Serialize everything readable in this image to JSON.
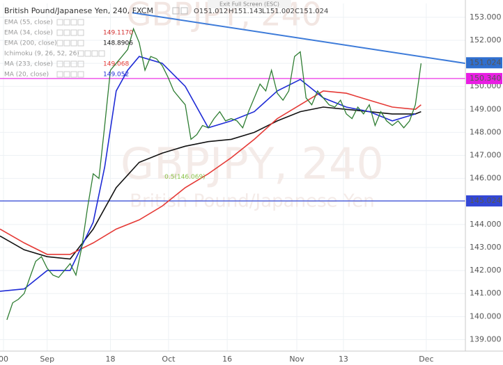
{
  "top_bar": "Exit Full Screen (ESC)",
  "chart_data": {
    "type": "line",
    "title": "British Pound/Japanese Yen, 240, FXCM",
    "ohlc": [
      "O151.012",
      "H151.143",
      "L151.002",
      "C151.024"
    ],
    "watermark": [
      "GBPJPY, 240",
      "British Pound/Japanese Yen"
    ],
    "xlim": [
      -8.2,
      72.7
    ],
    "ylim": [
      138.5,
      153.6
    ],
    "xticks": [
      {
        "value": -7.6,
        "label": "00"
      },
      {
        "value": 0,
        "label": "Sep"
      },
      {
        "value": 11,
        "label": "18"
      },
      {
        "value": 21.1,
        "label": "Oct"
      },
      {
        "value": 31.3,
        "label": "16"
      },
      {
        "value": 43.4,
        "label": "Nov"
      },
      {
        "value": 51.5,
        "label": "13"
      },
      {
        "value": 65.9,
        "label": "Dec"
      }
    ],
    "yticks": [
      {
        "value": 139,
        "label": "139.000"
      },
      {
        "value": 140,
        "label": "140.000"
      },
      {
        "value": 141,
        "label": "141.000"
      },
      {
        "value": 142,
        "label": "142.000"
      },
      {
        "value": 143,
        "label": "143.000"
      },
      {
        "value": 144,
        "label": "144.000"
      },
      {
        "value": 145,
        "label": "145.000"
      },
      {
        "value": 146,
        "label": "146.000"
      },
      {
        "value": 147,
        "label": "147.000"
      },
      {
        "value": 148,
        "label": "148.000"
      },
      {
        "value": 149,
        "label": "149.000"
      },
      {
        "value": 150,
        "label": "150.000"
      },
      {
        "value": 151,
        "label": "151.000"
      },
      {
        "value": 152,
        "label": "152.000"
      },
      {
        "value": 153,
        "label": "153.000"
      }
    ],
    "grid": true,
    "price": {
      "color": "#2e7d32",
      "x": [
        -7,
        -6,
        -5,
        -4,
        -3,
        -2,
        -1,
        0,
        1,
        2,
        3,
        4,
        5,
        6,
        7,
        8,
        9,
        10,
        11,
        12,
        13,
        14,
        15,
        16,
        17,
        18,
        19,
        20,
        21,
        22,
        23,
        24,
        25,
        26,
        27,
        28,
        29,
        30,
        31,
        32,
        33,
        34,
        35,
        36,
        37,
        38,
        39,
        40,
        41,
        42,
        43,
        44,
        45,
        46,
        47,
        48,
        49,
        50,
        51,
        52,
        53,
        54,
        55,
        56,
        57,
        58,
        59,
        60,
        61,
        62,
        63,
        64,
        65
      ],
      "values": [
        139.86,
        140.6,
        140.75,
        141.0,
        141.7,
        142.4,
        142.6,
        142.1,
        141.8,
        141.7,
        142.0,
        142.3,
        141.8,
        143.0,
        144.7,
        146.2,
        146.0,
        148.3,
        150.7,
        151.0,
        151.3,
        151.6,
        152.5,
        151.9,
        150.7,
        151.3,
        151.2,
        150.9,
        150.4,
        149.8,
        149.5,
        149.2,
        147.7,
        147.9,
        148.3,
        148.2,
        148.6,
        148.9,
        148.5,
        148.6,
        148.5,
        148.2,
        148.9,
        149.5,
        150.1,
        149.8,
        150.7,
        149.7,
        149.4,
        149.8,
        151.3,
        151.5,
        149.5,
        149.2,
        149.8,
        149.5,
        149.2,
        149.1,
        149.4,
        148.8,
        148.6,
        149.1,
        148.8,
        149.2,
        148.3,
        148.9,
        148.5,
        148.3,
        148.5,
        148.2,
        148.5,
        149.2,
        151.0
      ]
    },
    "series": [
      {
        "name": "EMA (55, close)"
      },
      {
        "name": "EMA (34, close)",
        "value_label": "149.1170",
        "color": "#d32f2f"
      },
      {
        "name": "EMA (200, close)",
        "value_label": "148.8906",
        "color": "#111111",
        "x": [
          -8.2,
          -4,
          0,
          4,
          8,
          12,
          16,
          20,
          24,
          28,
          32,
          36,
          40,
          44,
          48,
          52,
          56,
          60,
          64,
          65
        ],
        "values": [
          143.5,
          142.9,
          142.6,
          142.5,
          143.8,
          145.6,
          146.7,
          147.1,
          147.4,
          147.6,
          147.7,
          148.0,
          148.5,
          148.9,
          149.1,
          149.0,
          148.9,
          148.8,
          148.8,
          148.9
        ]
      },
      {
        "name": "Ichimoku (9, 26, 52, 26)"
      },
      {
        "name": "MA (233, close)",
        "value_label": "149.068",
        "color": "#e53935",
        "x": [
          -8.2,
          -4,
          0,
          4,
          8,
          12,
          16,
          20,
          24,
          28,
          32,
          36,
          40,
          44,
          48,
          52,
          56,
          60,
          64,
          65
        ],
        "values": [
          143.8,
          143.2,
          142.7,
          142.7,
          143.2,
          143.8,
          144.2,
          144.8,
          145.6,
          146.2,
          146.9,
          147.7,
          148.6,
          149.2,
          149.8,
          149.7,
          149.4,
          149.1,
          149.0,
          149.2
        ]
      },
      {
        "name": "MA (20, close)",
        "value_label": "149.052",
        "color": "#1e2bd6",
        "x": [
          -8.2,
          -4,
          0,
          4,
          8,
          10,
          12,
          14,
          16,
          20,
          24,
          28,
          32,
          36,
          40,
          44,
          48,
          52,
          56,
          60,
          64
        ],
        "values": [
          141.1,
          141.2,
          142.0,
          142.0,
          144.1,
          146.5,
          149.8,
          150.7,
          151.3,
          151.0,
          150.0,
          148.2,
          148.5,
          148.9,
          149.8,
          150.3,
          149.5,
          149.1,
          148.9,
          148.5,
          148.8
        ]
      }
    ],
    "trendline": {
      "color": "#3d7bd9",
      "x": [
        14.8,
        72.7
      ],
      "values": [
        153.2,
        151.0
      ]
    },
    "hlines": [
      {
        "value": 150.34,
        "label": "150.340",
        "color": "#e91ee3"
      },
      {
        "value": 145.024,
        "label": "145.024",
        "color": "#3347d6"
      }
    ],
    "last_price": {
      "value": 151.024,
      "label": "151.024",
      "color": "#2f6fcf"
    },
    "annotation": {
      "text": "0.5(146.069)",
      "x": 20.4,
      "y": 146.069,
      "color": "#8bc34a"
    }
  }
}
